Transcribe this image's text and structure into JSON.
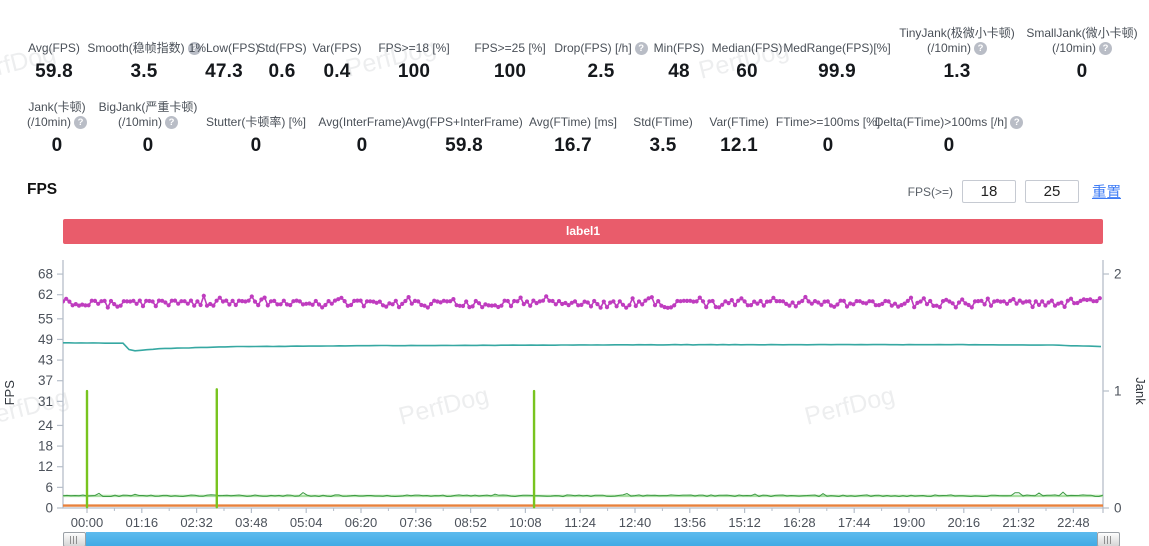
{
  "watermark": "PerfDog",
  "metrics_row1": [
    {
      "label": "Avg(FPS)",
      "value": "59.8"
    },
    {
      "label": "Smooth(稳帧指数)",
      "help": true,
      "value": "3.5"
    },
    {
      "label": "1%Low(FPS)",
      "value": "47.3"
    },
    {
      "label": "Std(FPS)",
      "value": "0.6"
    },
    {
      "label": "Var(FPS)",
      "value": "0.4"
    },
    {
      "label": "FPS>=18 [%]",
      "value": "100"
    },
    {
      "label": "FPS>=25 [%]",
      "value": "100"
    },
    {
      "label": "Drop(FPS) [/h]",
      "help": true,
      "value": "2.5"
    },
    {
      "label": "Min(FPS)",
      "value": "48"
    },
    {
      "label": "Median(FPS)",
      "value": "60"
    },
    {
      "label": "MedRange(FPS)[%]",
      "value": "99.9"
    },
    {
      "label": "TinyJank(极微小卡顿)",
      "label2": "(/10min)",
      "help": true,
      "value": "1.3"
    },
    {
      "label": "SmallJank(微小卡顿)",
      "label2": "(/10min)",
      "help": true,
      "value": "0"
    }
  ],
  "metrics_row2": [
    {
      "label": "Jank(卡顿)",
      "label2": "(/10min)",
      "help": true,
      "value": "0"
    },
    {
      "label": "BigJank(严重卡顿)",
      "label2": "(/10min)",
      "help": true,
      "value": "0"
    },
    {
      "label": "Stutter(卡顿率) [%]",
      "value": "0"
    },
    {
      "label": "Avg(InterFrame)",
      "value": "0"
    },
    {
      "label": "Avg(FPS+InterFrame)",
      "value": "59.8"
    },
    {
      "label": "Avg(FTime) [ms]",
      "value": "16.7"
    },
    {
      "label": "Std(FTime)",
      "value": "3.5"
    },
    {
      "label": "Var(FTime)",
      "value": "12.1"
    },
    {
      "label": "FTime>=100ms [%]",
      "value": "0"
    },
    {
      "label": "Delta(FTime)>100ms [/h]",
      "help": true,
      "value": "0"
    }
  ],
  "section": {
    "title": "FPS"
  },
  "filter": {
    "label": "FPS(>=)",
    "min": "18",
    "max": "25",
    "reset": "重置"
  },
  "banner": {
    "text": "label1",
    "color": "#e95c6b"
  },
  "chart_data": {
    "type": "line",
    "title": "label1",
    "x_axis": {
      "tick_labels": [
        "00:00",
        "01:16",
        "02:32",
        "03:48",
        "05:04",
        "06:20",
        "07:36",
        "08:52",
        "10:08",
        "11:24",
        "12:40",
        "13:56",
        "15:12",
        "16:28",
        "17:44",
        "19:00",
        "20:16",
        "21:32",
        "22:48"
      ],
      "tick_interval_s": 76,
      "end_s": 1409
    },
    "y_left": {
      "label": "FPS",
      "ticks": [
        0,
        6,
        12,
        18,
        24,
        31,
        37,
        43,
        49,
        55,
        62,
        68
      ],
      "max": 68
    },
    "y_right": {
      "label": "Jank",
      "ticks": [
        0,
        1,
        2
      ],
      "max": 2
    },
    "legend_position": "none",
    "grid": false,
    "series": [
      {
        "name": "baseline-green",
        "color": "#a9dfa2",
        "style": "flat-line",
        "value": 3.5
      },
      {
        "name": "jank-activity",
        "color": "#3f9b45",
        "style": "jitter-line",
        "base": 3.5,
        "noise": [
          -0.2,
          0.6
        ]
      },
      {
        "name": "jank-zero-line",
        "color": "#e8813c",
        "style": "flat-line",
        "value": 0.7
      },
      {
        "name": "fps-drop-spikes",
        "color": "#78c41f",
        "style": "vertical-spikes",
        "base": 0.2,
        "spikes": [
          {
            "time_s": 0,
            "value": 34
          },
          {
            "time_s": 180,
            "value": 34.5
          },
          {
            "time_s": 620,
            "value": 34
          }
        ]
      },
      {
        "name": "interframe",
        "color": "#36a8a2",
        "style": "line",
        "approx_value": 47.5,
        "keypoints": [
          [
            -33,
            48.0
          ],
          [
            52,
            47.9
          ],
          [
            60,
            45.6
          ],
          [
            100,
            46.3
          ],
          [
            200,
            46.9
          ],
          [
            400,
            47.2
          ],
          [
            800,
            47.45
          ],
          [
            1200,
            47.5
          ],
          [
            1340,
            47.35
          ],
          [
            1410,
            46.9
          ]
        ]
      },
      {
        "name": "fps",
        "color": "#bf3cbf",
        "style": "dotted-line",
        "approx_value": 60,
        "range": [
          58,
          61.5
        ]
      }
    ]
  }
}
